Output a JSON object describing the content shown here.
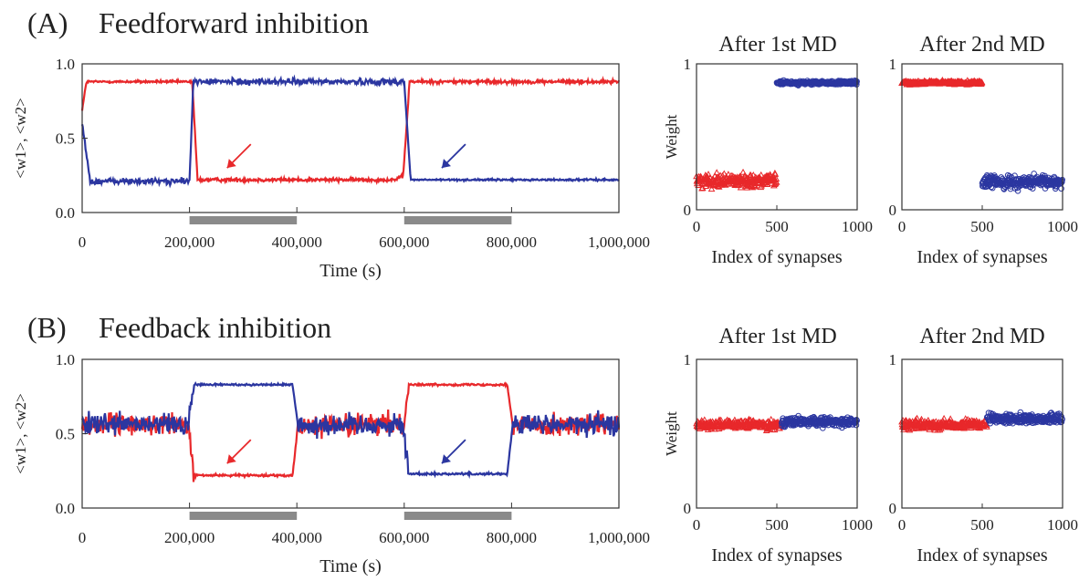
{
  "colors": {
    "red": "#e8282b",
    "blue": "#2b36a0",
    "bar": "#8a8a8a",
    "axis": "#333333"
  },
  "panels": {
    "A": {
      "label": "(A)",
      "title": "Feedforward inhibition"
    },
    "B": {
      "label": "(B)",
      "title": "Feedback inhibition"
    }
  },
  "common": {
    "time_xlabel": "Time (s)",
    "time_ylabel": "<w1>, <w2>",
    "time_xticks": [
      "0",
      "200,000",
      "400,000",
      "600,000",
      "800,000",
      "1,000,000"
    ],
    "time_yticks": [
      "0.0",
      "0.5",
      "1.0"
    ],
    "scatter_xlabel": "Index of synapses",
    "scatter_ylabel": "Weight",
    "scatter_xticks": [
      "0",
      "500",
      "1000"
    ],
    "scatter_yticks": [
      "0",
      "1"
    ],
    "title_md1": "After 1st MD",
    "title_md2": "After 2nd MD"
  },
  "chart_data": [
    {
      "id": "A-time",
      "type": "line",
      "title": "",
      "xlabel": "Time (s)",
      "ylabel": "<w1>, <w2>",
      "xlim": [
        0,
        1000000
      ],
      "ylim": [
        0,
        1
      ],
      "deprivation_periods": [
        [
          200000,
          400000
        ],
        [
          600000,
          800000
        ]
      ],
      "series": [
        {
          "color": "red",
          "x": [
            0,
            8000,
            190000,
            205000,
            215000,
            580000,
            598000,
            610000,
            1000000
          ],
          "y": [
            0.69,
            0.88,
            0.88,
            0.88,
            0.22,
            0.22,
            0.24,
            0.88,
            0.88
          ],
          "noise": [
            0.008,
            0.008,
            0.012,
            0.012
          ]
        },
        {
          "color": "blue",
          "x": [
            0,
            15000,
            200000,
            207000,
            600000,
            612000,
            1000000
          ],
          "y": [
            0.6,
            0.21,
            0.21,
            0.88,
            0.88,
            0.22,
            0.22
          ],
          "noise": [
            0.02,
            0.02,
            0.006,
            0.025
          ]
        }
      ]
    },
    {
      "id": "A-md1",
      "type": "scatter",
      "title": "After 1st MD",
      "xlabel": "Index of synapses",
      "ylabel": "Weight",
      "xlim": [
        0,
        1000
      ],
      "ylim": [
        0,
        1
      ],
      "series": [
        {
          "color": "red",
          "marker": "triangle",
          "x_range": [
            0,
            500
          ],
          "y_center": 0.2,
          "y_spread": 0.07
        },
        {
          "color": "blue",
          "marker": "circle",
          "x_range": [
            500,
            1000
          ],
          "y_center": 0.87,
          "y_spread": 0.02
        }
      ]
    },
    {
      "id": "A-md2",
      "type": "scatter",
      "title": "After 2nd MD",
      "xlabel": "Index of synapses",
      "ylabel": "",
      "xlim": [
        0,
        1000
      ],
      "ylim": [
        0,
        1
      ],
      "series": [
        {
          "color": "red",
          "marker": "triangle",
          "x_range": [
            0,
            500
          ],
          "y_center": 0.87,
          "y_spread": 0.02
        },
        {
          "color": "blue",
          "marker": "circle",
          "x_range": [
            500,
            1000
          ],
          "y_center": 0.19,
          "y_spread": 0.07
        }
      ]
    },
    {
      "id": "B-time",
      "type": "line",
      "title": "",
      "xlabel": "Time (s)",
      "ylabel": "<w1>, <w2>",
      "xlim": [
        0,
        1000000
      ],
      "ylim": [
        0,
        1
      ],
      "deprivation_periods": [
        [
          200000,
          400000
        ],
        [
          600000,
          800000
        ]
      ],
      "series": [
        {
          "color": "red",
          "x": [
            0,
            198000,
            208000,
            392000,
            402000,
            598000,
            608000,
            792000,
            802000,
            1000000
          ],
          "y": [
            0.56,
            0.56,
            0.22,
            0.22,
            0.56,
            0.56,
            0.83,
            0.83,
            0.56,
            0.56
          ],
          "noise": [
            0.07,
            0.007,
            0.07,
            0.007,
            0.07
          ]
        },
        {
          "color": "blue",
          "x": [
            0,
            198000,
            208000,
            392000,
            402000,
            598000,
            608000,
            792000,
            802000,
            1000000
          ],
          "y": [
            0.56,
            0.56,
            0.83,
            0.83,
            0.56,
            0.56,
            0.23,
            0.23,
            0.56,
            0.56
          ],
          "noise": [
            0.07,
            0.007,
            0.07,
            0.008,
            0.07
          ]
        }
      ]
    },
    {
      "id": "B-md1",
      "type": "scatter",
      "title": "After 1st MD",
      "xlabel": "Index of synapses",
      "ylabel": "Weight",
      "xlim": [
        0,
        1000
      ],
      "ylim": [
        0,
        1
      ],
      "series": [
        {
          "color": "red",
          "marker": "triangle",
          "x_range": [
            0,
            530
          ],
          "y_center": 0.56,
          "y_spread": 0.05
        },
        {
          "color": "blue",
          "marker": "circle",
          "x_range": [
            530,
            1000
          ],
          "y_center": 0.58,
          "y_spread": 0.05
        }
      ]
    },
    {
      "id": "B-md2",
      "type": "scatter",
      "title": "After 2nd MD",
      "xlabel": "Index of synapses",
      "ylabel": "",
      "xlim": [
        0,
        1000
      ],
      "ylim": [
        0,
        1
      ],
      "series": [
        {
          "color": "red",
          "marker": "triangle",
          "x_range": [
            0,
            530
          ],
          "y_center": 0.56,
          "y_spread": 0.05
        },
        {
          "color": "blue",
          "marker": "circle",
          "x_range": [
            530,
            1000
          ],
          "y_center": 0.6,
          "y_spread": 0.05
        }
      ]
    }
  ]
}
